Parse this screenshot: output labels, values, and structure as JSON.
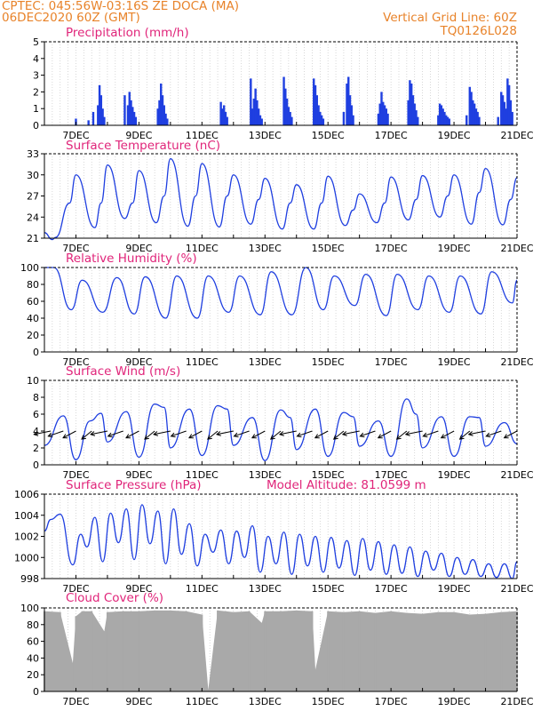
{
  "header": {
    "line1": "CPTEC:   045:56W-03:16S   ZE DOCA (MA)",
    "line2": "06DEC2020 60Z (GMT)",
    "right1": "Vertical Grid Line: 60Z",
    "right2": "TQ0126L028"
  },
  "colors": {
    "header": "#e8832a",
    "title": "#e0257a",
    "series": "#1f3fe0",
    "cloud": "#a9a9a9",
    "wind_arrow": "#000000"
  },
  "x_tick_labels": [
    "7DEC",
    "9DEC",
    "11DEC",
    "13DEC",
    "15DEC",
    "17DEC",
    "19DEC",
    "21DEC"
  ],
  "chart_data": [
    {
      "type": "bar",
      "title": "Precipitation (mm/h)",
      "ylim": [
        0,
        5
      ],
      "y_ticks": [
        "0",
        "1",
        "2",
        "3",
        "4",
        "5"
      ],
      "x_range_days": [
        6,
        21
      ],
      "day_x": [
        7.0,
        7.4,
        7.55,
        7.7,
        7.75,
        7.8,
        7.85,
        7.9,
        8.55,
        8.65,
        8.7,
        8.75,
        8.8,
        8.85,
        8.9,
        9.6,
        9.65,
        9.7,
        9.75,
        9.8,
        9.85,
        9.9,
        11.6,
        11.65,
        11.7,
        11.75,
        11.8,
        12.55,
        12.6,
        12.65,
        12.7,
        12.75,
        12.8,
        12.85,
        12.9,
        13.6,
        13.65,
        13.7,
        13.75,
        13.8,
        13.85,
        14.55,
        14.6,
        14.65,
        14.7,
        14.75,
        14.8,
        14.85,
        15.5,
        15.6,
        15.65,
        15.7,
        15.75,
        15.8,
        16.6,
        16.65,
        16.7,
        16.75,
        16.8,
        16.85,
        16.9,
        17.55,
        17.6,
        17.65,
        17.7,
        17.75,
        17.8,
        17.85,
        18.5,
        18.55,
        18.6,
        18.65,
        18.7,
        18.75,
        18.8,
        18.85,
        19.4,
        19.5,
        19.55,
        19.6,
        19.65,
        19.7,
        19.75,
        19.8,
        20.4,
        20.5,
        20.55,
        20.6,
        20.65,
        20.7,
        20.75,
        20.8,
        20.85
      ],
      "values": [
        0.4,
        0.3,
        0.8,
        1.2,
        2.4,
        1.8,
        1.0,
        0.5,
        1.8,
        1.2,
        2.0,
        1.5,
        1.1,
        0.8,
        0.5,
        1.0,
        1.5,
        2.5,
        1.8,
        1.2,
        0.7,
        0.4,
        1.4,
        1.0,
        1.2,
        0.8,
        0.5,
        2.8,
        1.0,
        1.6,
        2.2,
        1.5,
        1.0,
        0.6,
        0.4,
        2.9,
        2.2,
        1.6,
        1.1,
        0.8,
        0.5,
        2.8,
        2.4,
        1.8,
        1.2,
        0.8,
        0.6,
        0.4,
        0.8,
        2.5,
        2.9,
        1.8,
        1.2,
        0.6,
        0.7,
        1.3,
        2.0,
        1.4,
        1.2,
        1.0,
        0.7,
        1.5,
        2.7,
        2.5,
        1.8,
        1.3,
        0.9,
        0.5,
        0.6,
        1.3,
        1.2,
        1.0,
        0.8,
        0.6,
        0.5,
        0.4,
        0.6,
        2.3,
        2.0,
        1.5,
        1.3,
        1.0,
        0.8,
        0.5,
        0.5,
        2.0,
        1.8,
        1.4,
        1.0,
        2.8,
        2.4,
        1.5,
        0.8
      ]
    },
    {
      "type": "line",
      "title": "Surface Temperature (nC)",
      "ylim": [
        21,
        33
      ],
      "y_ticks": [
        "21",
        "24",
        "27",
        "30",
        "33"
      ],
      "x_range_days": [
        6,
        21
      ],
      "day_x": [
        6.0,
        6.25,
        6.35,
        6.8,
        7.0,
        7.6,
        7.8,
        8.0,
        8.55,
        8.8,
        9.0,
        9.55,
        9.8,
        10.0,
        10.55,
        10.8,
        11.0,
        11.55,
        11.8,
        12.0,
        12.55,
        12.8,
        13.0,
        13.55,
        13.8,
        14.0,
        14.55,
        14.8,
        15.0,
        15.55,
        15.8,
        16.0,
        16.55,
        16.8,
        17.0,
        17.55,
        17.8,
        18.0,
        18.55,
        18.8,
        19.0,
        19.55,
        19.8,
        20.0,
        20.55,
        20.8,
        21.0
      ],
      "values": [
        21.8,
        20.8,
        21.1,
        26.0,
        30.0,
        22.5,
        26.0,
        31.4,
        23.8,
        26.0,
        30.6,
        23.2,
        27.0,
        32.3,
        22.7,
        27.0,
        31.6,
        22.6,
        27.0,
        30.0,
        23.0,
        26.5,
        29.5,
        22.3,
        26.0,
        28.6,
        22.3,
        26.0,
        29.8,
        22.8,
        25.0,
        27.3,
        23.2,
        26.0,
        29.7,
        23.6,
        26.5,
        29.9,
        24.0,
        27.0,
        30.0,
        23.0,
        27.5,
        30.9,
        22.9,
        26.5,
        29.6
      ]
    },
    {
      "type": "line",
      "title": "Relative Humidity (%)",
      "ylim": [
        0,
        100
      ],
      "y_ticks": [
        "0",
        "20",
        "40",
        "60",
        "80",
        "100"
      ],
      "x_range_days": [
        6,
        21
      ],
      "day_x": [
        6.0,
        6.3,
        6.85,
        7.2,
        7.85,
        8.3,
        8.85,
        9.2,
        9.85,
        10.2,
        10.85,
        11.2,
        11.85,
        12.2,
        12.85,
        13.2,
        13.85,
        14.3,
        14.85,
        15.2,
        15.85,
        16.2,
        16.85,
        17.2,
        17.85,
        18.2,
        18.85,
        19.2,
        19.85,
        20.2,
        20.85,
        21.0
      ],
      "values": [
        100,
        100,
        50,
        85,
        47,
        88,
        45,
        89,
        40,
        90,
        40,
        90,
        47,
        90,
        44,
        95,
        44,
        100,
        50,
        90,
        55,
        92,
        43,
        92,
        50,
        90,
        47,
        90,
        45,
        95,
        58,
        85
      ]
    },
    {
      "type": "line",
      "title": "Surface Wind (m/s)",
      "ylim": [
        0,
        10
      ],
      "y_ticks": [
        "0",
        "2",
        "4",
        "6",
        "8",
        "10"
      ],
      "x_range_days": [
        6,
        21
      ],
      "day_x": [
        6.0,
        6.6,
        7.0,
        7.45,
        7.8,
        8.0,
        8.6,
        9.0,
        9.5,
        9.8,
        10.0,
        10.6,
        11.0,
        11.5,
        11.8,
        12.0,
        12.6,
        13.0,
        13.5,
        13.8,
        14.0,
        14.6,
        15.0,
        15.5,
        15.8,
        16.0,
        16.6,
        17.0,
        17.5,
        17.8,
        18.0,
        18.6,
        19.0,
        19.5,
        19.8,
        20.0,
        20.6,
        21.0
      ],
      "values": [
        2.3,
        5.8,
        0.6,
        5.2,
        6.1,
        2.7,
        6.3,
        0.9,
        7.2,
        6.8,
        2.0,
        6.6,
        1.1,
        7.0,
        6.6,
        2.3,
        5.6,
        0.5,
        6.5,
        5.6,
        1.8,
        6.6,
        1.0,
        6.2,
        5.7,
        2.2,
        5.2,
        1.0,
        7.8,
        6.0,
        2.0,
        5.7,
        1.0,
        5.7,
        5.6,
        2.2,
        5.0,
        2.5
      ],
      "arrow_days": [
        6.2,
        6.6,
        7.0,
        7.5,
        8.0,
        8.5,
        9.0,
        9.5,
        10.0,
        10.5,
        11.0,
        11.5,
        12.0,
        12.5,
        13.0,
        13.5,
        14.0,
        14.5,
        15.0,
        15.5,
        16.0,
        16.5,
        17.0,
        17.5,
        18.0,
        18.5,
        19.0,
        19.5,
        20.0,
        20.5,
        21.0
      ]
    },
    {
      "type": "line",
      "title": "Surface Pressure (hPa)",
      "annotation": "Model Altitude: 81.0599 m",
      "ylim": [
        998,
        1006
      ],
      "y_ticks": [
        "998",
        "1000",
        "1002",
        "1004",
        "1006"
      ],
      "x_range_days": [
        6,
        21
      ],
      "day_x": [
        6.0,
        6.2,
        6.5,
        6.9,
        7.15,
        7.35,
        7.6,
        7.85,
        8.1,
        8.35,
        8.6,
        8.85,
        9.1,
        9.35,
        9.6,
        9.85,
        10.1,
        10.35,
        10.6,
        10.85,
        11.1,
        11.35,
        11.6,
        11.85,
        12.1,
        12.35,
        12.6,
        12.85,
        13.1,
        13.35,
        13.6,
        13.85,
        14.1,
        14.35,
        14.6,
        14.85,
        15.1,
        15.35,
        15.6,
        15.85,
        16.1,
        16.35,
        16.6,
        16.85,
        17.1,
        17.35,
        17.6,
        17.85,
        18.1,
        18.35,
        18.6,
        18.85,
        19.1,
        19.35,
        19.6,
        19.85,
        20.1,
        20.35,
        20.6,
        20.85,
        21.0
      ],
      "values": [
        1002.5,
        1003.6,
        1004.1,
        999.3,
        1002.2,
        1001.0,
        1003.8,
        999.6,
        1004.2,
        1001.4,
        1004.6,
        999.8,
        1005.0,
        1001.3,
        1004.4,
        999.4,
        1004.6,
        1000.3,
        1003.2,
        999.2,
        1002.2,
        1000.5,
        1002.6,
        999.4,
        1002.5,
        1000.0,
        1003.0,
        998.6,
        1002.0,
        999.4,
        1002.4,
        998.4,
        1002.2,
        999.2,
        1002.0,
        998.6,
        1001.9,
        999.0,
        1001.6,
        998.3,
        1001.8,
        998.8,
        1001.5,
        998.4,
        1001.2,
        998.5,
        1001.0,
        998.2,
        1000.6,
        998.8,
        1000.4,
        998.2,
        1000.0,
        998.4,
        999.8,
        998.2,
        999.4,
        998.1,
        999.4,
        998.0,
        999.6
      ]
    },
    {
      "type": "bar",
      "title": "Cloud Cover (%)",
      "ylim": [
        0,
        100
      ],
      "y_ticks": [
        "0",
        "20",
        "40",
        "60",
        "80",
        "100"
      ],
      "x_range_days": [
        6,
        21
      ],
      "day_x": [
        6.0,
        6.5,
        6.9,
        7.0,
        7.2,
        7.5,
        7.9,
        8.0,
        8.5,
        9.0,
        9.5,
        10.0,
        10.5,
        11.0,
        11.2,
        11.5,
        12.0,
        12.5,
        12.9,
        13.0,
        13.5,
        14.0,
        14.5,
        14.6,
        15.0,
        15.5,
        16.0,
        16.5,
        17.0,
        17.5,
        18.0,
        18.5,
        19.0,
        19.5,
        20.0,
        20.5,
        21.0
      ],
      "values": [
        96,
        95,
        34,
        90,
        96,
        96,
        72,
        95,
        96,
        96,
        97,
        97,
        96,
        92,
        2,
        97,
        95,
        96,
        82,
        96,
        96,
        97,
        96,
        26,
        96,
        95,
        96,
        94,
        96,
        94,
        93,
        95,
        95,
        92,
        93,
        95,
        96
      ]
    }
  ]
}
